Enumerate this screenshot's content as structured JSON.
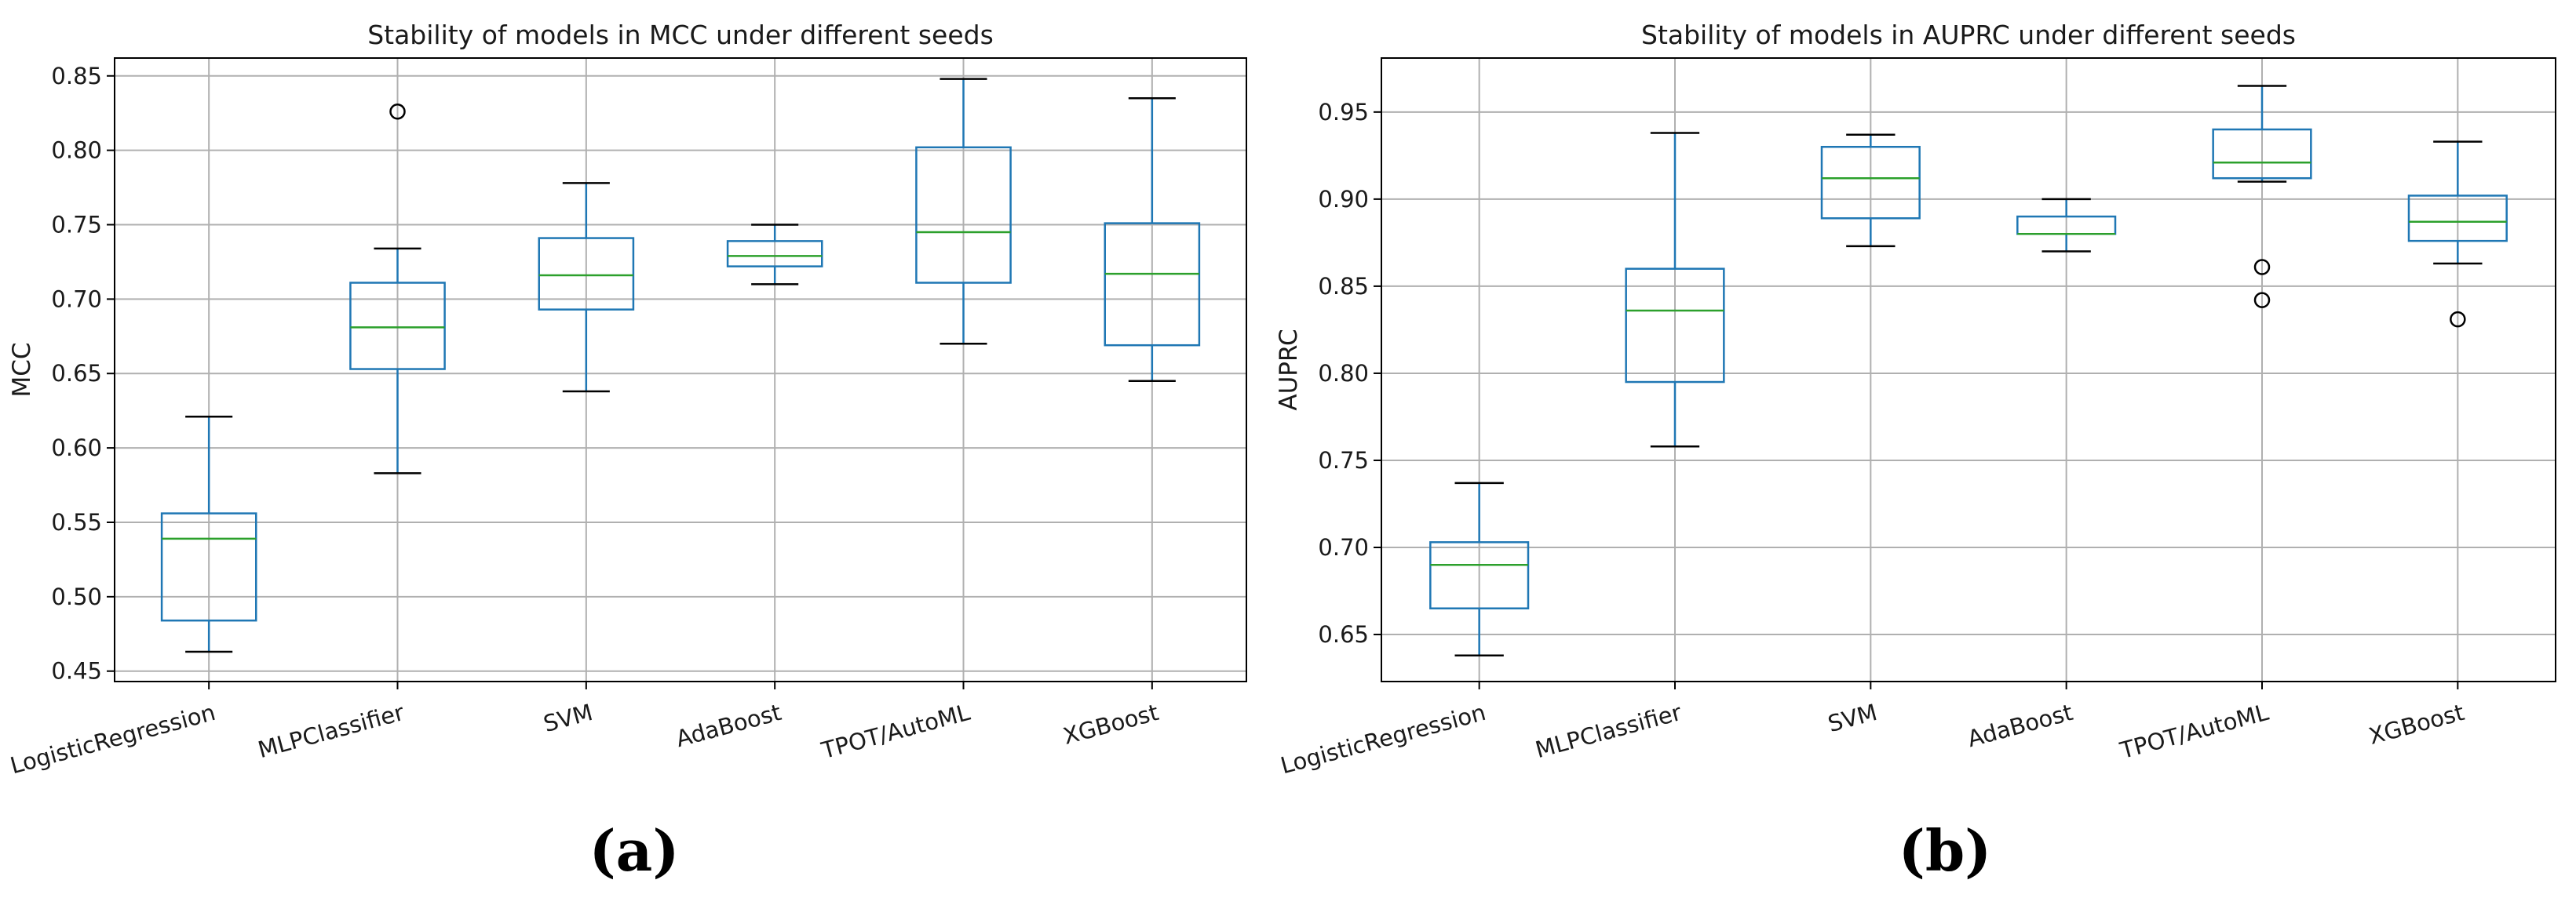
{
  "chart_data": [
    {
      "type": "box",
      "title": "Stability of models in MCC under different seeds",
      "xlabel": "",
      "ylabel": "MCC",
      "ylim": [
        0.443,
        0.862
      ],
      "yticks": [
        0.45,
        0.5,
        0.55,
        0.6,
        0.65,
        0.7,
        0.75,
        0.8,
        0.85
      ],
      "ytick_labels": [
        "0.45",
        "0.50",
        "0.55",
        "0.60",
        "0.65",
        "0.70",
        "0.75",
        "0.80",
        "0.85"
      ],
      "categories": [
        "LogisticRegression",
        "MLPClassifier",
        "SVM",
        "AdaBoost",
        "TPOT/AutoML",
        "XGBoost"
      ],
      "grid": true,
      "caption": "(a)",
      "boxes": [
        {
          "whisker_low": 0.463,
          "q1": 0.484,
          "median": 0.539,
          "q3": 0.556,
          "whisker_high": 0.621,
          "outliers": []
        },
        {
          "whisker_low": 0.583,
          "q1": 0.653,
          "median": 0.681,
          "q3": 0.711,
          "whisker_high": 0.734,
          "outliers": [
            0.826
          ]
        },
        {
          "whisker_low": 0.638,
          "q1": 0.693,
          "median": 0.716,
          "q3": 0.741,
          "whisker_high": 0.778,
          "outliers": []
        },
        {
          "whisker_low": 0.71,
          "q1": 0.722,
          "median": 0.729,
          "q3": 0.739,
          "whisker_high": 0.75,
          "outliers": []
        },
        {
          "whisker_low": 0.67,
          "q1": 0.711,
          "median": 0.745,
          "q3": 0.802,
          "whisker_high": 0.848,
          "outliers": []
        },
        {
          "whisker_low": 0.645,
          "q1": 0.669,
          "median": 0.717,
          "q3": 0.751,
          "whisker_high": 0.835,
          "outliers": []
        }
      ]
    },
    {
      "type": "box",
      "title": "Stability of models in AUPRC under different seeds",
      "xlabel": "",
      "ylabel": "AUPRC",
      "ylim": [
        0.623,
        0.981
      ],
      "yticks": [
        0.65,
        0.7,
        0.75,
        0.8,
        0.85,
        0.9,
        0.95
      ],
      "ytick_labels": [
        "0.65",
        "0.70",
        "0.75",
        "0.80",
        "0.85",
        "0.90",
        "0.95"
      ],
      "categories": [
        "LogisticRegression",
        "MLPClassifier",
        "SVM",
        "AdaBoost",
        "TPOT/AutoML",
        "XGBoost"
      ],
      "grid": true,
      "caption": "(b)",
      "boxes": [
        {
          "whisker_low": 0.638,
          "q1": 0.665,
          "median": 0.69,
          "q3": 0.703,
          "whisker_high": 0.737,
          "outliers": []
        },
        {
          "whisker_low": 0.758,
          "q1": 0.795,
          "median": 0.836,
          "q3": 0.86,
          "whisker_high": 0.938,
          "outliers": []
        },
        {
          "whisker_low": 0.873,
          "q1": 0.889,
          "median": 0.912,
          "q3": 0.93,
          "whisker_high": 0.937,
          "outliers": []
        },
        {
          "whisker_low": 0.87,
          "q1": 0.88,
          "median": 0.88,
          "q3": 0.89,
          "whisker_high": 0.9,
          "outliers": []
        },
        {
          "whisker_low": 0.91,
          "q1": 0.912,
          "median": 0.921,
          "q3": 0.94,
          "whisker_high": 0.965,
          "outliers": [
            0.861,
            0.842
          ]
        },
        {
          "whisker_low": 0.863,
          "q1": 0.876,
          "median": 0.887,
          "q3": 0.902,
          "whisker_high": 0.933,
          "outliers": [
            0.831
          ]
        }
      ]
    }
  ],
  "colors": {
    "box": "#1f77b4",
    "median": "#2ca02c",
    "whisker_cap": "#000000",
    "outlier": "#000000",
    "grid": "#b0b0b0",
    "axes": "#000000"
  }
}
